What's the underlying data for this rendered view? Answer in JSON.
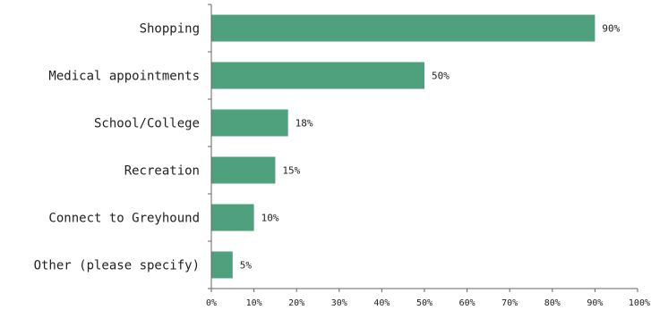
{
  "chart_data": {
    "type": "bar",
    "orientation": "horizontal",
    "categories": [
      "Shopping",
      "Medical appointments",
      "School/College",
      "Recreation",
      "Connect to Greyhound",
      "Other (please specify)"
    ],
    "values": [
      90,
      50,
      18,
      15,
      10,
      5
    ],
    "value_labels": [
      "90%",
      "50%",
      "18%",
      "15%",
      "10%",
      "5%"
    ],
    "x_ticks": [
      "0%",
      "10%",
      "20%",
      "30%",
      "40%",
      "50%",
      "60%",
      "70%",
      "80%",
      "90%",
      "100%"
    ],
    "xlim": [
      0,
      100
    ],
    "title": "",
    "xlabel": "",
    "ylabel": "",
    "grid": false,
    "colors": {
      "bar": "#4fa07c",
      "axis": "#666666",
      "text": "#222222"
    }
  }
}
